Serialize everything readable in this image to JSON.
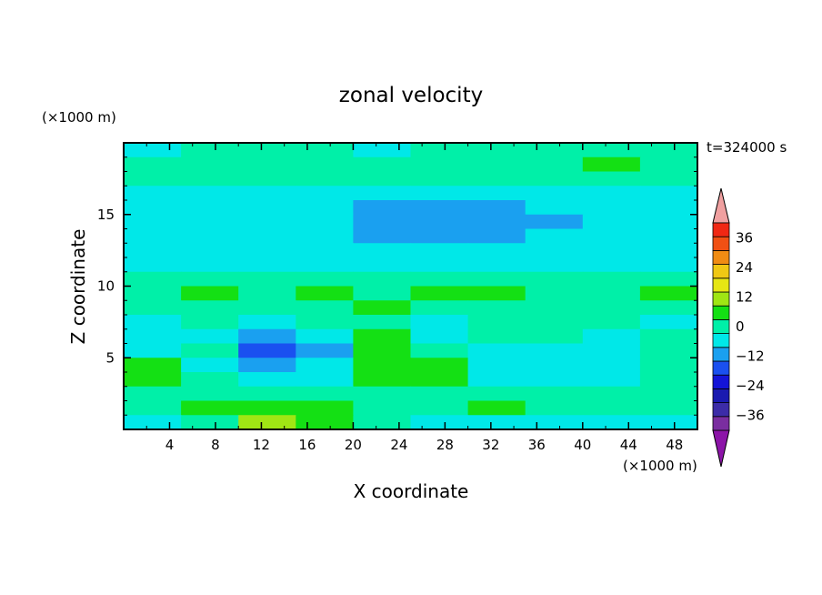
{
  "chart_data": {
    "type": "heatmap",
    "title": "zonal velocity",
    "time_label": "t=324000 s",
    "xlabel": "X coordinate",
    "ylabel": "Z coordinate",
    "x_unit": "(×1000 m)",
    "y_unit": "(×1000 m)",
    "xlim": [
      0,
      50
    ],
    "ylim": [
      0,
      20
    ],
    "x_ticks": [
      4,
      8,
      12,
      16,
      20,
      24,
      28,
      32,
      36,
      40,
      44,
      48
    ],
    "y_ticks": [
      5,
      10,
      15
    ],
    "colorbar": {
      "levels": [
        -42,
        -36,
        -30,
        -24,
        -18,
        -12,
        -6,
        0,
        6,
        12,
        18,
        24,
        30,
        36,
        42
      ],
      "labels": [
        36,
        24,
        12,
        0,
        -12,
        -24,
        -36
      ],
      "colors": [
        "#7a2ea0",
        "#3c2ca8",
        "#1a1ab0",
        "#1414d8",
        "#1a50f0",
        "#1aa0f0",
        "#00e8e8",
        "#00f0a8",
        "#14e014",
        "#a0e614",
        "#e6e614",
        "#f0c814",
        "#f08c14",
        "#f05014",
        "#f02814"
      ],
      "extend_low_color": "#8c14a8",
      "extend_high_color": "#f0a0a0"
    },
    "rows": {
      "z_centers": [
        19.5,
        18.5,
        17.5,
        16.5,
        15.5,
        14.5,
        13.5,
        12.5,
        11.5,
        10.5,
        9.5,
        8.5,
        7.5,
        6.5,
        5.5,
        4.5,
        3.5,
        2.5,
        1.5,
        0.5
      ],
      "x_breaks": [
        0,
        5,
        10,
        15,
        20,
        25,
        30,
        35,
        40,
        45,
        50
      ],
      "values": [
        [
          -3,
          1,
          1,
          1,
          -2,
          1,
          2,
          2,
          1,
          2
        ],
        [
          1,
          2,
          3,
          3,
          4,
          4,
          3,
          4,
          6,
          3
        ],
        [
          3,
          5,
          3,
          2,
          1,
          2,
          2,
          4,
          2,
          4
        ],
        [
          -2,
          -3,
          -3,
          -2,
          -2,
          -2,
          -2,
          -3,
          -2,
          -3
        ],
        [
          -4,
          -5,
          -5,
          -5,
          -7,
          -7,
          -7,
          -6,
          -5,
          -4
        ],
        [
          -4,
          -5,
          -6,
          -6,
          -8,
          -9,
          -9,
          -8,
          -6,
          -4
        ],
        [
          -4,
          -5,
          -5,
          -6,
          -7,
          -8,
          -7,
          -6,
          -5,
          -4
        ],
        [
          -4,
          -4,
          -4,
          -3,
          -4,
          -4,
          -4,
          -3,
          -3,
          -3
        ],
        [
          -2,
          -3,
          -3,
          -3,
          -3,
          -3,
          -2,
          -2,
          -2,
          -3
        ],
        [
          3,
          4,
          3,
          2,
          3,
          2,
          4,
          3,
          3,
          2
        ],
        [
          4,
          8,
          5,
          6,
          4,
          7,
          6,
          5,
          4,
          6
        ],
        [
          2,
          4,
          2,
          3,
          7,
          5,
          3,
          4,
          2,
          3
        ],
        [
          -3,
          1,
          -4,
          3,
          5,
          -4,
          4,
          5,
          2,
          -2
        ],
        [
          -4,
          -3,
          -11,
          -6,
          8,
          -5,
          2,
          1,
          -3,
          2
        ],
        [
          -2,
          1,
          -14,
          -7,
          10,
          3,
          -4,
          -3,
          -4,
          2
        ],
        [
          6,
          -3,
          -11,
          -5,
          11,
          10,
          -5,
          -4,
          -2,
          1
        ],
        [
          8,
          1,
          -6,
          -4,
          6,
          8,
          -4,
          -6,
          -4,
          2
        ],
        [
          3,
          4,
          3,
          2,
          1,
          2,
          4,
          1,
          3,
          2
        ],
        [
          2,
          6,
          10,
          7,
          3,
          4,
          6,
          4,
          2,
          1
        ],
        [
          -4,
          4,
          14,
          6,
          1,
          -4,
          -3,
          -5,
          -4,
          -6
        ]
      ]
    }
  }
}
